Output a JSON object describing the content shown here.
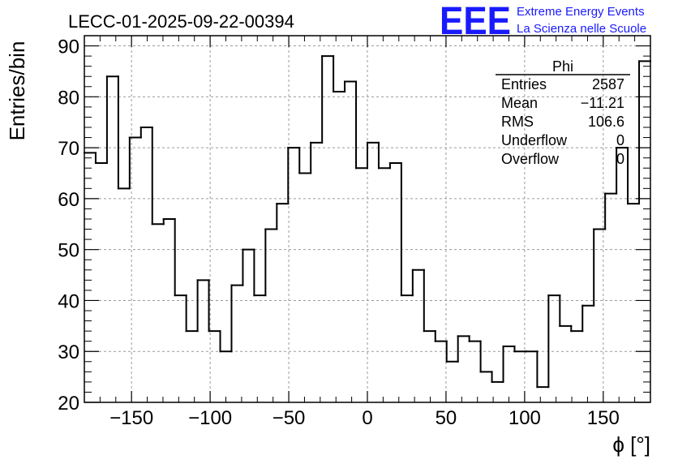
{
  "header": {
    "title": "LECC-01-2025-09-22-00394",
    "logo_text": "EEE",
    "logo_line1": "Extreme Energy Events",
    "logo_line2": "La Scienza nelle Scuole"
  },
  "stats_box": {
    "title": "Phi",
    "rows": [
      {
        "label": "Entries",
        "value": "2587"
      },
      {
        "label": "Mean",
        "value": "−11.21"
      },
      {
        "label": "RMS",
        "value": "106.6"
      },
      {
        "label": "Underflow",
        "value": "0"
      },
      {
        "label": "Overflow",
        "value": "0"
      }
    ]
  },
  "colors": {
    "logo": "#1a1aff",
    "line": "#000000",
    "grid": "#9a9a9a"
  },
  "chart_data": {
    "type": "histogram",
    "title": "LECC-01-2025-09-22-00394",
    "xlabel": "ϕ [°]",
    "ylabel": "Entries/bin",
    "xlim": [
      -180,
      180
    ],
    "ylim": [
      20,
      92
    ],
    "bin_width": 7.2,
    "grid": true,
    "xticks": [
      -150,
      -100,
      -50,
      0,
      50,
      100,
      150
    ],
    "xtick_labels": [
      "−150",
      "−100",
      "−50",
      "0",
      "50",
      "100",
      "150"
    ],
    "yticks": [
      20,
      30,
      40,
      50,
      60,
      70,
      80,
      90
    ],
    "ytick_labels": [
      "20",
      "30",
      "40",
      "50",
      "60",
      "70",
      "80",
      "90"
    ],
    "bin_low_edges": [
      -180,
      -172.8,
      -165.6,
      -158.4,
      -151.2,
      -144,
      -136.8,
      -129.6,
      -122.4,
      -115.2,
      -108,
      -100.8,
      -93.6,
      -86.4,
      -79.2,
      -72,
      -64.8,
      -57.6,
      -50.4,
      -43.2,
      -36,
      -28.8,
      -21.6,
      -14.4,
      -7.2,
      0,
      7.2,
      14.4,
      21.6,
      28.8,
      36,
      43.2,
      50.4,
      57.6,
      64.8,
      72,
      79.2,
      86.4,
      93.6,
      100.8,
      108,
      115.2,
      122.4,
      129.6,
      136.8,
      144,
      151.2,
      158.4,
      165.6,
      172.8
    ],
    "values": [
      69,
      67,
      84,
      62,
      72,
      74,
      55,
      56,
      41,
      34,
      44,
      34,
      30,
      43,
      50,
      41,
      54,
      59,
      70,
      65,
      71,
      88,
      81,
      83,
      66,
      71,
      66,
      67,
      41,
      46,
      34,
      32,
      28,
      33,
      32,
      26,
      24,
      31,
      30,
      30,
      23,
      41,
      35,
      34,
      39,
      54,
      61,
      70,
      59,
      87
    ]
  }
}
